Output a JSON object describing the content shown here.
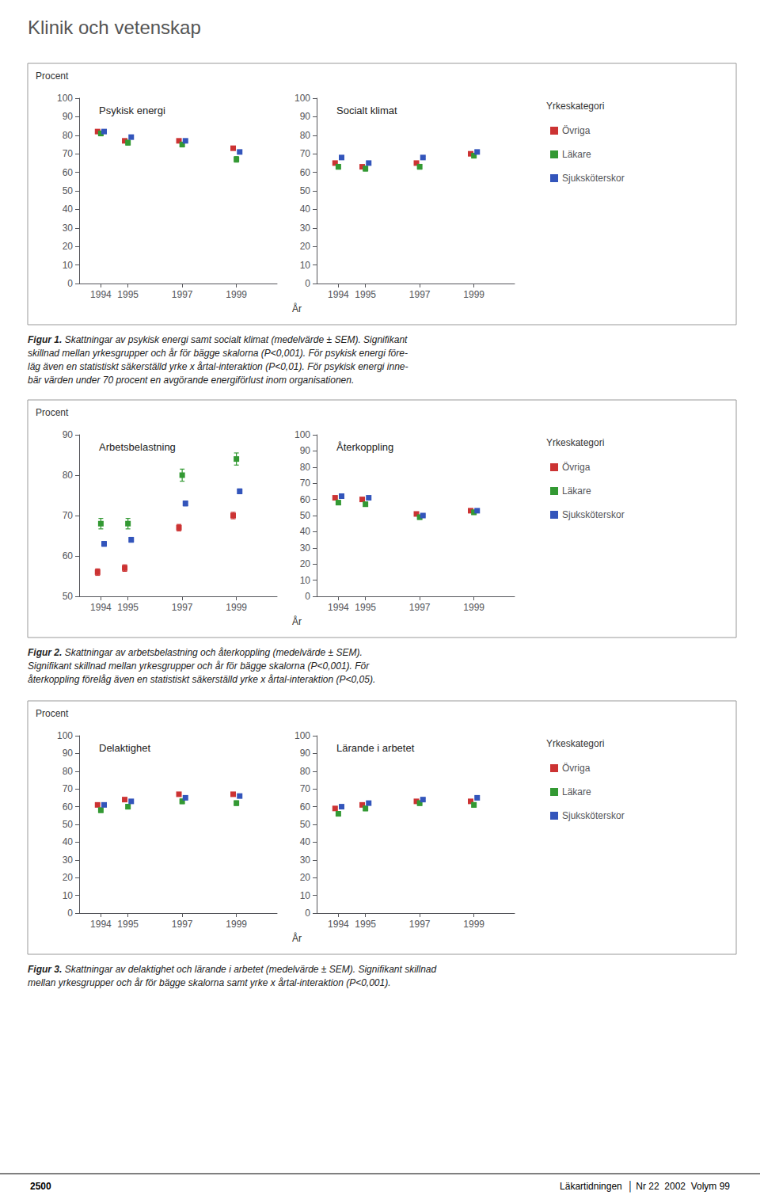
{
  "header": "Klinik och vetenskap",
  "footer_left": "2500",
  "footer_right": "Läkartidningen  │ Nr 22  2002  Volym 99",
  "chart_data": [
    {
      "type": "scatter",
      "y_label": "Procent",
      "x_label": "År",
      "legend": "right",
      "legend_title": "Yrkeskategori",
      "caption_bold": "Figur 1.",
      "caption": " Skattningar av psykisk energi samt socialt klimat (medelvärde ± SEM). Signifikant\nskillnad mellan yrkesgrupper och år för bägge skalorna (P<0,001). För psykisk energi före-\nläg även en statistiskt säkerställd yrke x årtal-interaktion (P<0,01). För psykisk energi inne-\nbär värden under 70 procent en avgörande energiförlust inom organisationen.",
      "panels": [
        {
          "title": "Psykisk energi",
          "x": [
            1994,
            1995,
            1997,
            1999
          ],
          "xlim": [
            1993.2,
            2000.5
          ],
          "xticks": [
            1994,
            1995,
            1997,
            1999
          ],
          "ylim": [
            0,
            100
          ],
          "yticks": [
            0,
            10,
            20,
            30,
            40,
            50,
            60,
            70,
            80,
            90,
            100
          ],
          "grid": false,
          "series": [
            {
              "name": "Övriga",
              "color": "#cc3333",
              "marker": "square",
              "values": [
                82,
                77,
                77,
                73
              ],
              "errors": [
                0.8,
                0.8,
                0.8,
                0.8
              ]
            },
            {
              "name": "Läkare",
              "color": "#339933",
              "marker": "square",
              "values": [
                81,
                76,
                75,
                67
              ],
              "errors": [
                1.3,
                1.3,
                1.3,
                1.5
              ]
            },
            {
              "name": "Sjuksköterskor",
              "color": "#3355bb",
              "marker": "square",
              "values": [
                82,
                79,
                77,
                71
              ],
              "errors": [
                0.6,
                0.6,
                0.6,
                0.6
              ]
            }
          ]
        },
        {
          "title": "Socialt klimat",
          "x": [
            1994,
            1995,
            1997,
            1999
          ],
          "xlim": [
            1993.2,
            2000.5
          ],
          "xticks": [
            1994,
            1995,
            1997,
            1999
          ],
          "ylim": [
            0,
            100
          ],
          "yticks": [
            0,
            10,
            20,
            30,
            40,
            50,
            60,
            70,
            80,
            90,
            100
          ],
          "grid": false,
          "series": [
            {
              "name": "Övriga",
              "color": "#cc3333",
              "marker": "square",
              "values": [
                65,
                63,
                65,
                70
              ],
              "errors": [
                0.8,
                0.8,
                0.8,
                0.8
              ]
            },
            {
              "name": "Läkare",
              "color": "#339933",
              "marker": "square",
              "values": [
                63,
                62,
                63,
                69
              ],
              "errors": [
                1.3,
                1.3,
                1.3,
                1.3
              ]
            },
            {
              "name": "Sjuksköterskor",
              "color": "#3355bb",
              "marker": "square",
              "values": [
                68,
                65,
                68,
                71
              ],
              "errors": [
                0.6,
                0.6,
                0.6,
                0.6
              ]
            }
          ]
        }
      ]
    },
    {
      "type": "scatter",
      "y_label": "Procent",
      "x_label": "År",
      "legend": "right",
      "legend_title": "Yrkeskategori",
      "caption_bold": "Figur 2.",
      "caption": " Skattningar av arbetsbelastning och återkoppling (medelvärde ± SEM).\nSignifikant skillnad mellan yrkesgrupper och år för bägge skalorna (P<0,001). För\nåterkoppling förelåg även en statistiskt säkerställd yrke x årtal-interaktion (P<0,05).",
      "panels": [
        {
          "title": "Arbetsbelastning",
          "x": [
            1994,
            1995,
            1997,
            1999
          ],
          "xlim": [
            1993.2,
            2000.5
          ],
          "xticks": [
            1994,
            1995,
            1997,
            1999
          ],
          "ylim": [
            50,
            90
          ],
          "yticks": [
            50,
            60,
            70,
            80,
            90
          ],
          "grid": false,
          "series": [
            {
              "name": "Övriga",
              "color": "#cc3333",
              "marker": "square",
              "values": [
                56,
                57,
                67,
                70
              ],
              "errors": [
                0.8,
                0.8,
                0.8,
                0.8
              ]
            },
            {
              "name": "Läkare",
              "color": "#339933",
              "marker": "square",
              "values": [
                68,
                68,
                80,
                84
              ],
              "errors": [
                1.3,
                1.3,
                1.5,
                1.5
              ]
            },
            {
              "name": "Sjuksköterskor",
              "color": "#3355bb",
              "marker": "square",
              "values": [
                63,
                64,
                73,
                76
              ],
              "errors": [
                0.6,
                0.6,
                0.6,
                0.6
              ]
            }
          ]
        },
        {
          "title": "Återkoppling",
          "x": [
            1994,
            1995,
            1997,
            1999
          ],
          "xlim": [
            1993.2,
            2000.5
          ],
          "xticks": [
            1994,
            1995,
            1997,
            1999
          ],
          "ylim": [
            0,
            100
          ],
          "yticks": [
            0,
            10,
            20,
            30,
            40,
            50,
            60,
            70,
            80,
            90,
            100
          ],
          "grid": false,
          "series": [
            {
              "name": "Övriga",
              "color": "#cc3333",
              "marker": "square",
              "values": [
                61,
                60,
                51,
                53
              ],
              "errors": [
                0.8,
                0.8,
                0.8,
                0.8
              ]
            },
            {
              "name": "Läkare",
              "color": "#339933",
              "marker": "square",
              "values": [
                58,
                57,
                49,
                52
              ],
              "errors": [
                1.3,
                1.3,
                1.3,
                1.3
              ]
            },
            {
              "name": "Sjuksköterskor",
              "color": "#3355bb",
              "marker": "square",
              "values": [
                62,
                61,
                50,
                53
              ],
              "errors": [
                0.6,
                0.6,
                0.6,
                0.6
              ]
            }
          ]
        }
      ]
    },
    {
      "type": "scatter",
      "y_label": "Procent",
      "x_label": "År",
      "legend": "right",
      "legend_title": "Yrkeskategori",
      "caption_bold": "Figur 3.",
      "caption": " Skattningar av delaktighet och lärande i arbetet (medelvärde ± SEM). Signifikant skillnad\nmellan yrkesgrupper och år för bägge skalorna samt yrke x årtal-interaktion (P<0,001).",
      "panels": [
        {
          "title": "Delaktighet",
          "x": [
            1994,
            1995,
            1997,
            1999
          ],
          "xlim": [
            1993.2,
            2000.5
          ],
          "xticks": [
            1994,
            1995,
            1997,
            1999
          ],
          "ylim": [
            0,
            100
          ],
          "yticks": [
            0,
            10,
            20,
            30,
            40,
            50,
            60,
            70,
            80,
            90,
            100
          ],
          "grid": false,
          "series": [
            {
              "name": "Övriga",
              "color": "#cc3333",
              "marker": "square",
              "values": [
                61,
                64,
                67,
                67
              ],
              "errors": [
                0.8,
                0.8,
                0.8,
                0.8
              ]
            },
            {
              "name": "Läkare",
              "color": "#339933",
              "marker": "square",
              "values": [
                58,
                60,
                63,
                62
              ],
              "errors": [
                1.3,
                1.3,
                1.3,
                1.3
              ]
            },
            {
              "name": "Sjuksköterskor",
              "color": "#3355bb",
              "marker": "square",
              "values": [
                61,
                63,
                65,
                66
              ],
              "errors": [
                0.6,
                0.6,
                0.6,
                0.6
              ]
            }
          ]
        },
        {
          "title": "Lärande i arbetet",
          "x": [
            1994,
            1995,
            1997,
            1999
          ],
          "xlim": [
            1993.2,
            2000.5
          ],
          "xticks": [
            1994,
            1995,
            1997,
            1999
          ],
          "ylim": [
            0,
            100
          ],
          "yticks": [
            0,
            10,
            20,
            30,
            40,
            50,
            60,
            70,
            80,
            90,
            100
          ],
          "grid": false,
          "series": [
            {
              "name": "Övriga",
              "color": "#cc3333",
              "marker": "square",
              "values": [
                59,
                61,
                63,
                63
              ],
              "errors": [
                0.8,
                0.8,
                0.8,
                0.8
              ]
            },
            {
              "name": "Läkare",
              "color": "#339933",
              "marker": "square",
              "values": [
                56,
                59,
                62,
                61
              ],
              "errors": [
                1.3,
                1.3,
                1.3,
                1.3
              ]
            },
            {
              "name": "Sjuksköterskor",
              "color": "#3355bb",
              "marker": "square",
              "values": [
                60,
                62,
                64,
                65
              ],
              "errors": [
                0.6,
                0.6,
                0.6,
                0.6
              ]
            }
          ]
        }
      ]
    }
  ]
}
